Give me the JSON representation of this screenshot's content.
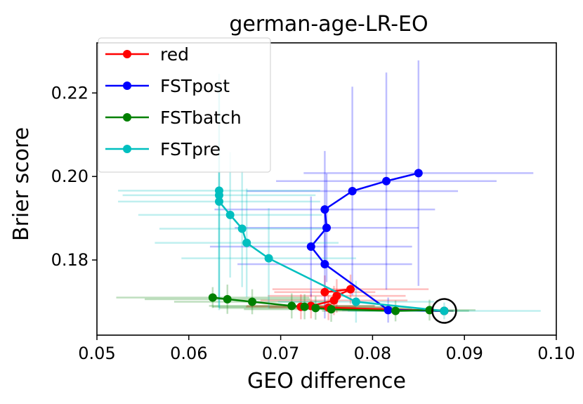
{
  "chart_data": {
    "type": "line",
    "title": "german-age-LR-EO",
    "xlabel": "GEO difference",
    "ylabel": "Brier score",
    "xlim": [
      0.05,
      0.1
    ],
    "ylim": [
      0.162,
      0.232
    ],
    "x_ticks": [
      0.05,
      0.06,
      0.07,
      0.08,
      0.09,
      0.1
    ],
    "x_tick_labels": [
      "0.05",
      "0.06",
      "0.07",
      "0.08",
      "0.09",
      "0.10"
    ],
    "y_ticks": [
      0.18,
      0.2,
      0.22
    ],
    "y_tick_labels": [
      "0.18",
      "0.20",
      "0.22"
    ],
    "legend_position": "top-left",
    "highlight": {
      "x": 0.0878,
      "y": 0.1678,
      "shape": "circle"
    },
    "series": [
      {
        "name": "red",
        "color": "#ff0000",
        "x": [
          0.0748,
          0.0776,
          0.0761,
          0.0758,
          0.0733,
          0.0722,
          0.0752,
          0.0878
        ],
        "y": [
          0.1723,
          0.173,
          0.1714,
          0.1703,
          0.169,
          0.1688,
          0.1686,
          0.1678
        ],
        "xerr": [
          0.0055,
          0.0085,
          0.0075,
          0.008,
          0.007,
          0.006,
          0.0065,
          0.001
        ],
        "yerr": [
          0.004,
          0.0035,
          0.004,
          0.0035,
          0.003,
          0.003,
          0.003,
          0.001
        ]
      },
      {
        "name": "FSTpost",
        "color": "#0000ff",
        "x": [
          0.085,
          0.0815,
          0.0778,
          0.0748,
          0.075,
          0.0733,
          0.0748,
          0.0817,
          0.0878
        ],
        "y": [
          0.2008,
          0.1989,
          0.1965,
          0.1921,
          0.1877,
          0.1832,
          0.179,
          0.168,
          0.1678
        ],
        "xerr": [
          0.0125,
          0.012,
          0.0115,
          0.012,
          0.01,
          0.011,
          0.0095,
          0.005,
          0.001
        ],
        "yerr": [
          0.027,
          0.026,
          0.025,
          0.014,
          0.013,
          0.012,
          0.013,
          0.003,
          0.001
        ]
      },
      {
        "name": "FSTbatch",
        "color": "#008000",
        "x": [
          0.0626,
          0.0642,
          0.0669,
          0.0712,
          0.0726,
          0.0738,
          0.0755,
          0.0825,
          0.0862,
          0.0878
        ],
        "y": [
          0.171,
          0.1706,
          0.17,
          0.169,
          0.1688,
          0.1685,
          0.1682,
          0.1678,
          0.168,
          0.1678
        ],
        "xerr": [
          0.0105,
          0.009,
          0.0085,
          0.009,
          0.01,
          0.0105,
          0.0095,
          0.008,
          0.005,
          0.001
        ],
        "yerr": [
          0.0025,
          0.0035,
          0.003,
          0.003,
          0.003,
          0.0028,
          0.003,
          0.0025,
          0.0025,
          0.001
        ]
      },
      {
        "name": "FSTpre",
        "color": "#00bfbf",
        "x": [
          0.0633,
          0.0633,
          0.0633,
          0.0645,
          0.0658,
          0.0663,
          0.0687,
          0.0782,
          0.0878
        ],
        "y": [
          0.1966,
          0.1955,
          0.194,
          0.1908,
          0.1875,
          0.1841,
          0.1804,
          0.17,
          0.1678
        ],
        "xerr": [
          0.011,
          0.0105,
          0.011,
          0.01,
          0.009,
          0.01,
          0.0095,
          0.0085,
          0.0105
        ],
        "yerr": [
          0.028,
          0.027,
          0.026,
          0.015,
          0.014,
          0.013,
          0.012,
          0.005,
          0.002
        ]
      }
    ]
  }
}
